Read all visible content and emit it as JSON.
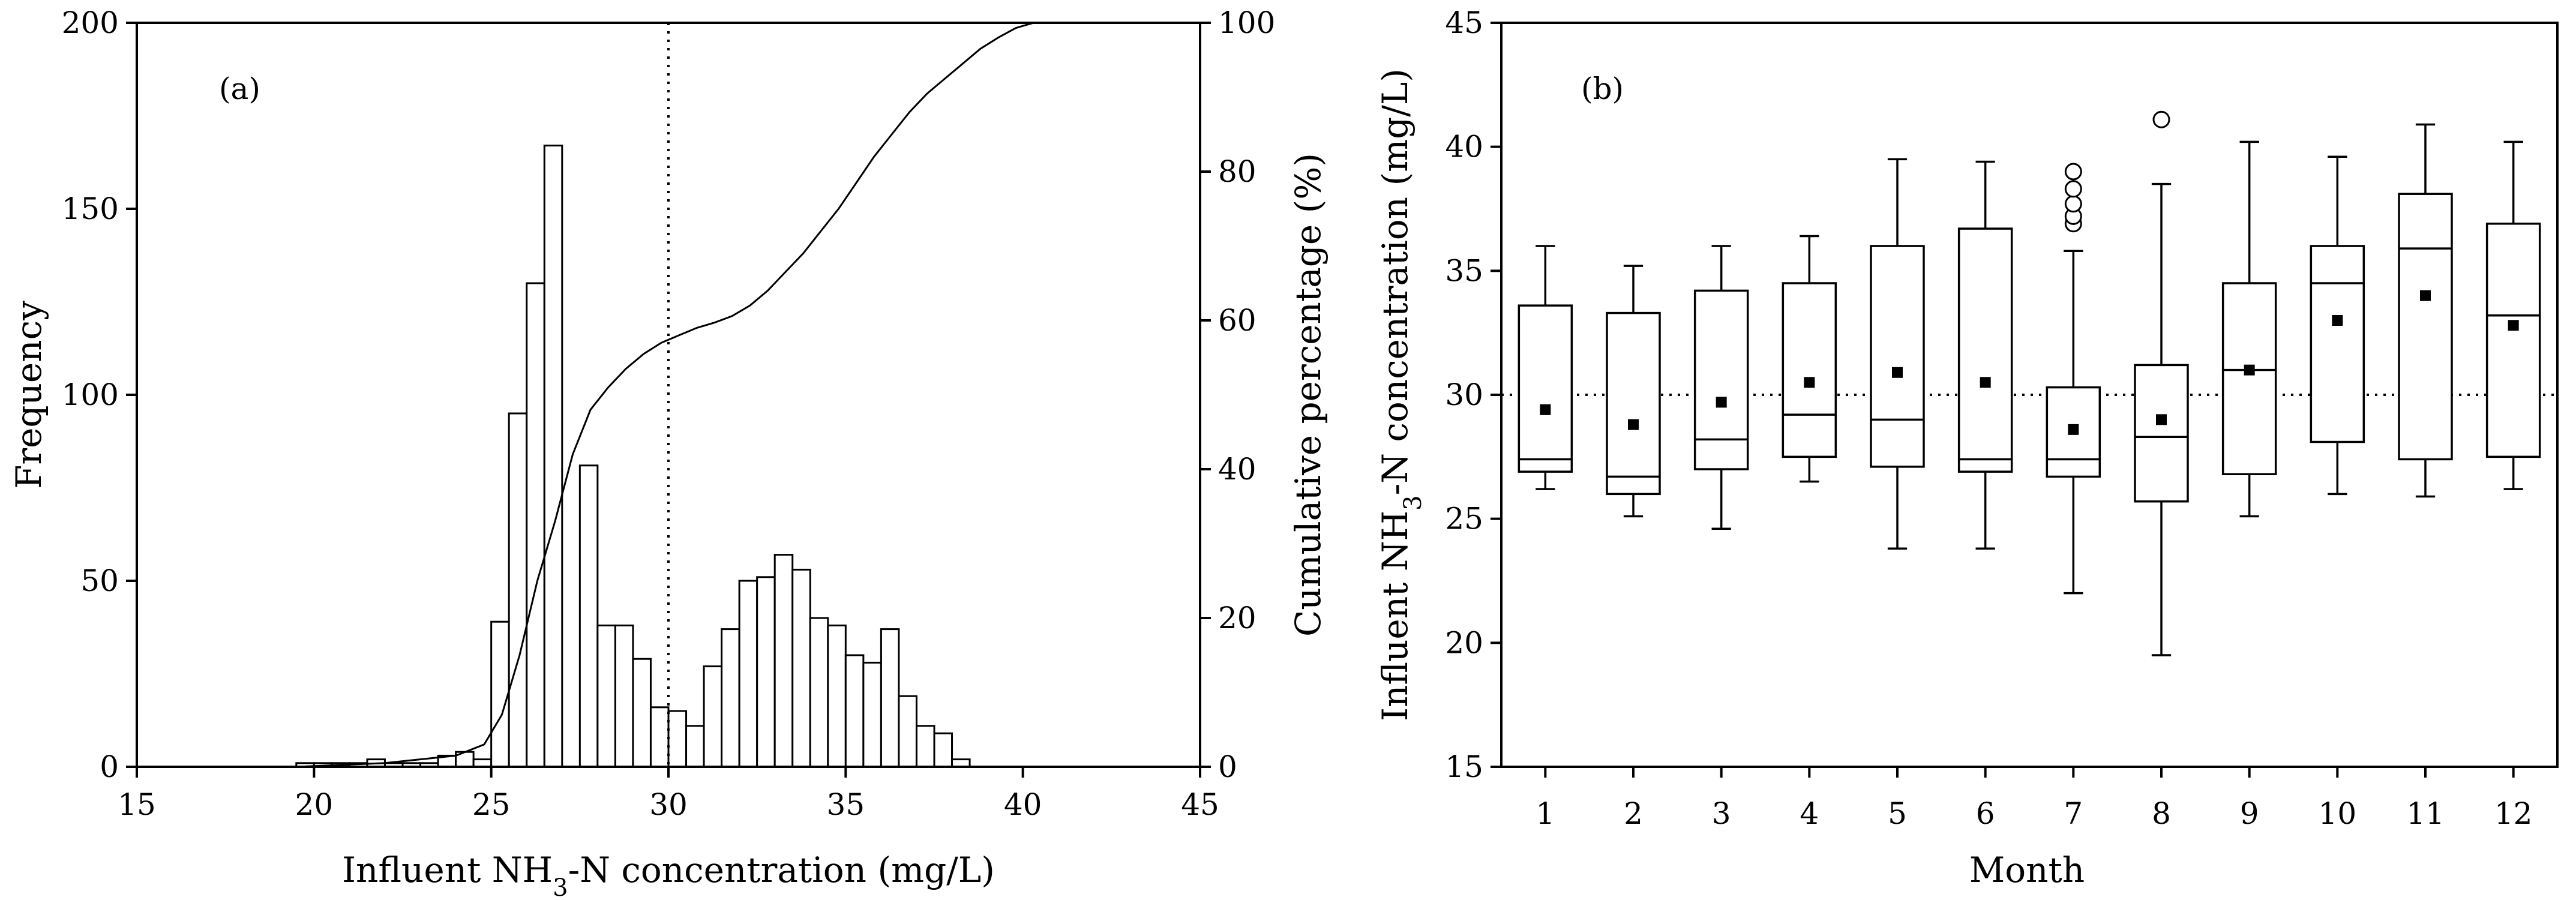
{
  "chart_data": [
    {
      "type": "bar",
      "panel_label": "(a)",
      "xlabel_parts": [
        "Influent NH",
        "3",
        "-N concentration (mg/L)"
      ],
      "ylabel": "Frequency",
      "y2label": "Cumulative percentage (%)",
      "xlim": [
        15,
        45
      ],
      "ylim": [
        0,
        200
      ],
      "y2lim": [
        0,
        100
      ],
      "xticks": [
        "15",
        "20",
        "25",
        "30",
        "35",
        "40",
        "45"
      ],
      "yticks": [
        "0",
        "50",
        "100",
        "150",
        "200"
      ],
      "y2ticks": [
        "0",
        "20",
        "40",
        "60",
        "80",
        "100"
      ],
      "bin_width": 0.5,
      "bin_starts": [
        19.5,
        20.0,
        20.5,
        21.0,
        21.5,
        22.0,
        22.5,
        23.0,
        23.5,
        24.0,
        24.5,
        25.0,
        25.5,
        26.0,
        26.5,
        27.0,
        27.5,
        28.0,
        28.5,
        29.0,
        29.5,
        30.0,
        30.5,
        31.0,
        31.5,
        32.0,
        32.5,
        33.0,
        33.5,
        34.0,
        34.5,
        35.0,
        35.5,
        36.0,
        36.5,
        37.0,
        37.5,
        38.0,
        38.5,
        39.0,
        39.5,
        40.0,
        40.5,
        41.0
      ],
      "frequency": [
        1,
        1,
        1,
        1,
        2,
        1,
        1,
        1,
        3,
        4,
        2,
        39,
        95,
        130,
        167,
        0,
        81,
        38,
        38,
        29,
        16,
        15,
        11,
        27,
        37,
        50,
        51,
        57,
        53,
        40,
        38,
        30,
        28,
        37,
        19,
        11,
        9,
        2,
        0,
        0,
        0,
        0,
        0,
        0
      ],
      "vline_x": 30,
      "cumulative": {
        "x": [
          19.5,
          22,
          24,
          24.8,
          25.3,
          25.8,
          26.3,
          26.8,
          27.3,
          27.8,
          28.3,
          28.8,
          29.3,
          29.8,
          30.3,
          30.8,
          31.3,
          31.8,
          32.3,
          32.8,
          33.3,
          33.8,
          34.3,
          34.8,
          35.3,
          35.8,
          36.3,
          36.8,
          37.3,
          37.8,
          38.3,
          38.8,
          39.3,
          39.8,
          40.3,
          45
        ],
        "y": [
          0,
          0.5,
          1.5,
          3,
          7,
          15,
          25,
          33,
          42,
          48,
          51,
          53.5,
          55.5,
          57,
          58,
          59,
          59.7,
          60.6,
          62,
          64,
          66.5,
          69,
          72,
          75,
          78.5,
          82,
          85,
          88,
          90.5,
          92.5,
          94.5,
          96.5,
          98,
          99.3,
          100,
          100
        ]
      }
    },
    {
      "type": "box",
      "panel_label": "(b)",
      "xlabel": "Month",
      "ylabel_parts": [
        "Influent NH",
        "3",
        "-N concentration (mg/L)"
      ],
      "ylim": [
        15,
        45
      ],
      "yticks": [
        "15",
        "20",
        "25",
        "30",
        "35",
        "40",
        "45"
      ],
      "reference_line": 30,
      "categories": [
        "1",
        "2",
        "3",
        "4",
        "5",
        "6",
        "7",
        "8",
        "9",
        "10",
        "11",
        "12"
      ],
      "boxes": [
        {
          "min": 26.2,
          "q1": 26.9,
          "median": 27.4,
          "q3": 33.6,
          "max": 36.0,
          "mean": 29.4,
          "outliers": []
        },
        {
          "min": 25.1,
          "q1": 26.0,
          "median": 26.7,
          "q3": 33.3,
          "max": 35.2,
          "mean": 28.8,
          "outliers": []
        },
        {
          "min": 24.6,
          "q1": 27.0,
          "median": 28.2,
          "q3": 34.2,
          "max": 36.0,
          "mean": 29.7,
          "outliers": []
        },
        {
          "min": 26.5,
          "q1": 27.5,
          "median": 29.2,
          "q3": 34.5,
          "max": 36.4,
          "mean": 30.5,
          "outliers": []
        },
        {
          "min": 23.8,
          "q1": 27.1,
          "median": 29.0,
          "q3": 36.0,
          "max": 39.5,
          "mean": 30.9,
          "outliers": []
        },
        {
          "min": 23.8,
          "q1": 26.9,
          "median": 27.4,
          "q3": 36.7,
          "max": 39.4,
          "mean": 30.5,
          "outliers": []
        },
        {
          "min": 22.0,
          "q1": 26.7,
          "median": 27.4,
          "q3": 30.3,
          "max": 35.8,
          "mean": 28.6,
          "outliers": [
            36.9,
            37.2,
            37.7,
            38.3,
            39.0
          ]
        },
        {
          "min": 19.5,
          "q1": 25.7,
          "median": 28.3,
          "q3": 31.2,
          "max": 38.5,
          "mean": 29.0,
          "outliers": [
            41.1
          ]
        },
        {
          "min": 25.1,
          "q1": 26.8,
          "median": 31.0,
          "q3": 34.5,
          "max": 40.2,
          "mean": 31.0,
          "outliers": []
        },
        {
          "min": 26.0,
          "q1": 28.1,
          "median": 34.5,
          "q3": 36.0,
          "max": 39.6,
          "mean": 33.0,
          "outliers": []
        },
        {
          "min": 25.9,
          "q1": 27.4,
          "median": 35.9,
          "q3": 38.1,
          "max": 40.9,
          "mean": 34.0,
          "outliers": []
        },
        {
          "min": 26.2,
          "q1": 27.5,
          "median": 33.2,
          "q3": 36.9,
          "max": 40.2,
          "mean": 32.8,
          "outliers": []
        }
      ]
    }
  ]
}
